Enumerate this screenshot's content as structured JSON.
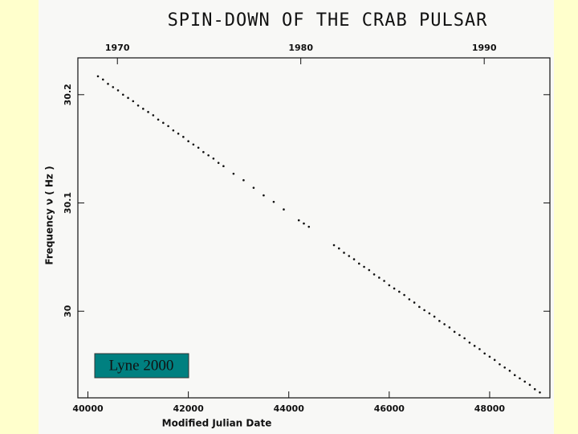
{
  "chart_data": {
    "type": "scatter",
    "title": "SPIN-DOWN OF THE CRAB PULSAR",
    "x_label": "Modified Julian Date",
    "y_label": "Frequency ν ( Hz )",
    "annotation": "Lyne 2000",
    "color": "#111111",
    "x": [
      40200,
      40300,
      40400,
      40500,
      40600,
      40700,
      40800,
      40900,
      41000,
      41100,
      41200,
      41300,
      41400,
      41500,
      41600,
      41700,
      41800,
      41900,
      42000,
      42100,
      42200,
      42300,
      42400,
      42500,
      42600,
      42700,
      42900,
      43100,
      43300,
      43500,
      43700,
      43900,
      44200,
      44300,
      44400,
      44900,
      45000,
      45100,
      45200,
      45300,
      45400,
      45500,
      45600,
      45700,
      45800,
      45900,
      46000,
      46100,
      46200,
      46300,
      46400,
      46500,
      46600,
      46700,
      46800,
      46900,
      47000,
      47100,
      47200,
      47300,
      47400,
      47500,
      47600,
      47700,
      47800,
      47900,
      48000,
      48100,
      48200,
      48300,
      48400,
      48500,
      48600,
      48700,
      48800,
      48900,
      49000
    ],
    "values": [
      30.217,
      30.214,
      30.21,
      30.207,
      30.204,
      30.2,
      30.197,
      30.194,
      30.19,
      30.187,
      30.184,
      30.181,
      30.177,
      30.174,
      30.171,
      30.167,
      30.164,
      30.161,
      30.157,
      30.154,
      30.151,
      30.147,
      30.144,
      30.141,
      30.137,
      30.134,
      30.127,
      30.121,
      30.114,
      30.107,
      30.101,
      30.094,
      30.084,
      30.081,
      30.078,
      30.061,
      30.058,
      30.054,
      30.051,
      30.048,
      30.044,
      30.041,
      30.038,
      30.034,
      30.031,
      30.028,
      30.024,
      30.021,
      30.018,
      30.015,
      30.011,
      30.008,
      30.004,
      30.001,
      29.998,
      29.995,
      29.991,
      29.988,
      29.985,
      29.981,
      29.978,
      29.975,
      29.971,
      29.968,
      29.965,
      29.961,
      29.958,
      29.955,
      29.951,
      29.948,
      29.945,
      29.941,
      29.938,
      29.935,
      29.932,
      29.928,
      29.925
    ],
    "xlim": [
      39800,
      49200
    ],
    "ylim": [
      29.92,
      30.234
    ],
    "xticks": [
      40000,
      42000,
      44000,
      46000,
      48000
    ],
    "yticks": [
      30,
      30.1,
      30.2
    ],
    "x2ticks": [
      {
        "value": 40587,
        "label": "1970"
      },
      {
        "value": 44239,
        "label": "1980"
      },
      {
        "value": 47892,
        "label": "1990"
      }
    ]
  }
}
